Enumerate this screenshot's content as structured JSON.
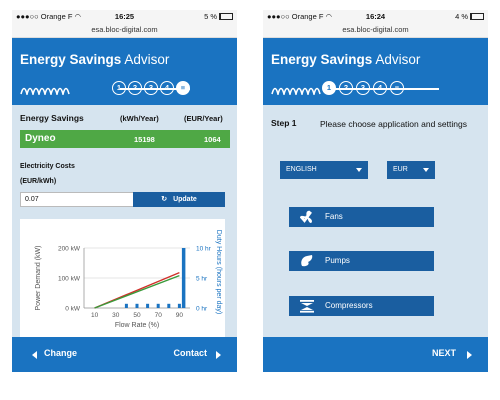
{
  "status_left": {
    "carrier": "Orange F",
    "time": "16:25",
    "battery": "5 %",
    "battery_level": 0.05,
    "url": "esa.bloc-digital.com"
  },
  "status_right": {
    "carrier": "Orange F",
    "time": "16:24",
    "battery": "4 %",
    "battery_level": 0.04,
    "url": "esa.bloc-digital.com"
  },
  "header": {
    "title_bold": "Energy Savings",
    "title_rest": "Advisor",
    "steps": [
      "1",
      "2",
      "3",
      "4",
      "≡"
    ]
  },
  "left": {
    "current_step_index": 4,
    "energy_savings": {
      "title": "Energy Savings",
      "col_kwh": "(kWh/Year)",
      "col_eur": "(EUR/Year)",
      "product": "Dyneo",
      "kwh": "15198",
      "eur": "1064"
    },
    "electricity": {
      "label": "Electricity Costs",
      "unit": "(EUR/kWh)",
      "value": "0.07",
      "update_label": "Update"
    },
    "nav": {
      "change": "Change",
      "contact": "Contact"
    }
  },
  "chart_data": {
    "type": "line",
    "xlabel": "Flow Rate (%)",
    "ylabel": "Power Demand (kW)",
    "y2label": "Duty Hours (hours per day)",
    "x_ticks": [
      "10",
      "30",
      "50",
      "70",
      "90"
    ],
    "y_ticks": [
      "0 kW",
      "100 kW",
      "200 kW"
    ],
    "y2_ticks": [
      "0 hr",
      "5 hr",
      "10 hr"
    ],
    "xlim": [
      0,
      100
    ],
    "ylim": [
      0,
      200
    ],
    "y2lim": [
      0,
      10
    ],
    "grid": true,
    "series": [
      {
        "x": [
          10,
          90
        ],
        "values": [
          0,
          118
        ],
        "color": "#d0302a",
        "axis": "left"
      },
      {
        "x": [
          10,
          90
        ],
        "values": [
          0,
          108
        ],
        "color": "#3a9a3a",
        "axis": "left"
      }
    ],
    "bars": {
      "axis": "right",
      "color": "#1a73c1",
      "x": [
        40,
        50,
        60,
        70,
        80,
        90,
        94
      ],
      "values": [
        0.7,
        0.7,
        0.7,
        0.7,
        0.7,
        0.7,
        10
      ]
    }
  },
  "right": {
    "current_step_index": 0,
    "step_label": "Step 1",
    "step_text": "Please choose application and settings",
    "language": "ENGLISH",
    "currency": "EUR",
    "apps": [
      {
        "label": "Fans",
        "icon": "fan-icon",
        "selected": true
      },
      {
        "label": "Pumps",
        "icon": "pump-icon",
        "selected": false
      },
      {
        "label": "Compressors",
        "icon": "compressor-icon",
        "selected": false
      }
    ],
    "next_label": "NEXT"
  },
  "colors": {
    "brand_blue": "#1a73c1",
    "dark_blue": "#1a5ea0",
    "green": "#4fa845",
    "panel_bg": "#d6e4ef"
  }
}
